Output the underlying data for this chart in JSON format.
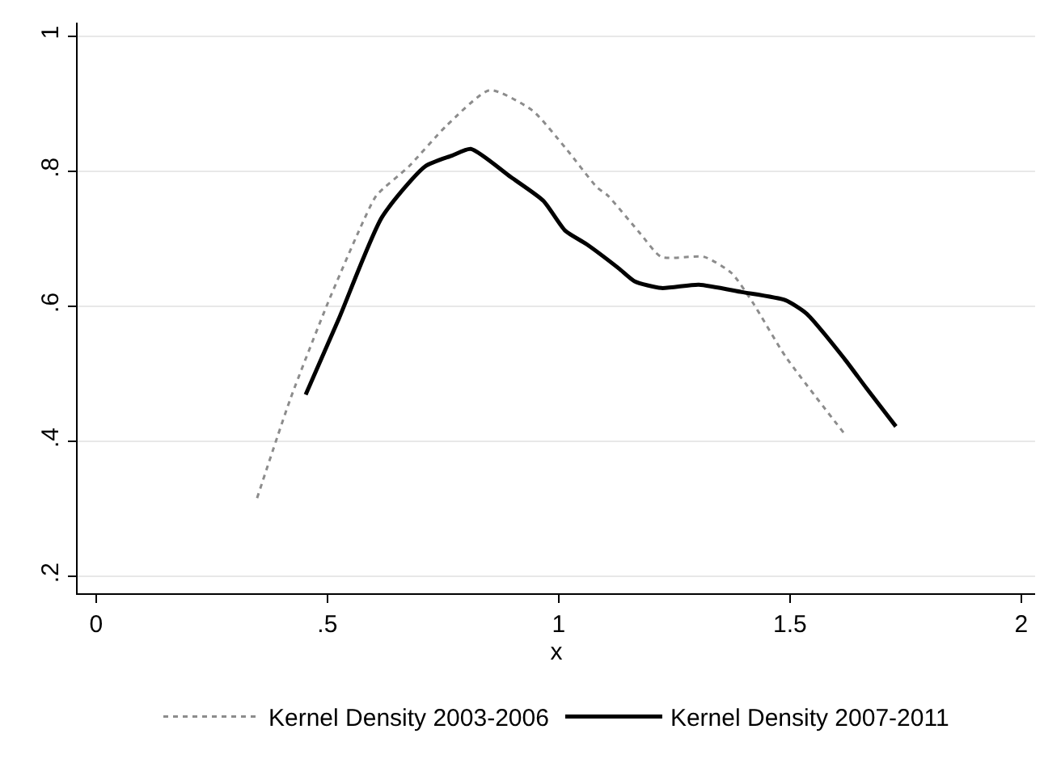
{
  "chart_data": {
    "type": "line",
    "xlabel": "x",
    "xlim": [
      -0.04,
      2.03
    ],
    "ylim": [
      0.175,
      1.02
    ],
    "xticks": [
      0,
      {
        "value": 0.5,
        "label": ".5"
      },
      1,
      {
        "value": 1.5,
        "label": "1.5"
      },
      2
    ],
    "yticks": [
      {
        "value": 0.2,
        "label": ".2"
      },
      {
        "value": 0.4,
        "label": ".4"
      },
      {
        "value": 0.6,
        "label": ".6"
      },
      {
        "value": 0.8,
        "label": ".8"
      },
      1
    ],
    "grid": "y",
    "legend": "bottom",
    "series": [
      {
        "name": "Kernel Density 2003-2006",
        "color": "#8c8c8c",
        "line_style": "dotted",
        "x": [
          0.348,
          0.42,
          0.501,
          0.571,
          0.606,
          0.676,
          0.757,
          0.851,
          0.943,
          1.014,
          1.083,
          1.106,
          1.176,
          1.222,
          1.315,
          1.374,
          1.42,
          1.49,
          1.618
        ],
        "values": [
          0.316,
          0.463,
          0.605,
          0.716,
          0.764,
          0.807,
          0.867,
          0.92,
          0.89,
          0.835,
          0.776,
          0.764,
          0.708,
          0.673,
          0.673,
          0.649,
          0.605,
          0.526,
          0.411
        ]
      },
      {
        "name": "Kernel Density 2007-2011",
        "color": "#000000",
        "line_style": "solid",
        "x": [
          0.453,
          0.525,
          0.618,
          0.711,
          0.769,
          0.81,
          0.897,
          0.967,
          1.014,
          1.06,
          1.13,
          1.164,
          1.222,
          1.303,
          1.396,
          1.49,
          1.536,
          1.618,
          1.665,
          1.729
        ],
        "values": [
          0.469,
          0.582,
          0.732,
          0.807,
          0.823,
          0.833,
          0.791,
          0.756,
          0.712,
          0.692,
          0.656,
          0.637,
          0.627,
          0.632,
          0.621,
          0.609,
          0.589,
          0.522,
          0.479,
          0.422
        ]
      }
    ]
  }
}
